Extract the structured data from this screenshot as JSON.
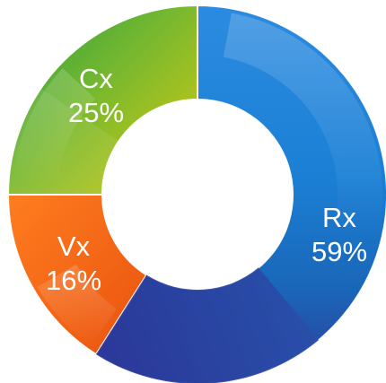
{
  "chart_data": {
    "type": "pie",
    "subtype": "donut",
    "title": "",
    "legend": "none",
    "slices": [
      {
        "name": "Rx",
        "value": 59,
        "display_value": "59%",
        "colors": [
          "#0f73c3",
          "#3a8fe0",
          "#2d3d9b"
        ],
        "style": "blue-gradient"
      },
      {
        "name": "Vx",
        "value": 16,
        "display_value": "16%",
        "colors": [
          "#ff7a1a",
          "#e85a0d"
        ],
        "style": "orange-gradient"
      },
      {
        "name": "Cx",
        "value": 25,
        "display_value": "25%",
        "colors": [
          "#d7c90f",
          "#7db934",
          "#239340"
        ],
        "style": "green-yellow-gradient"
      }
    ]
  }
}
